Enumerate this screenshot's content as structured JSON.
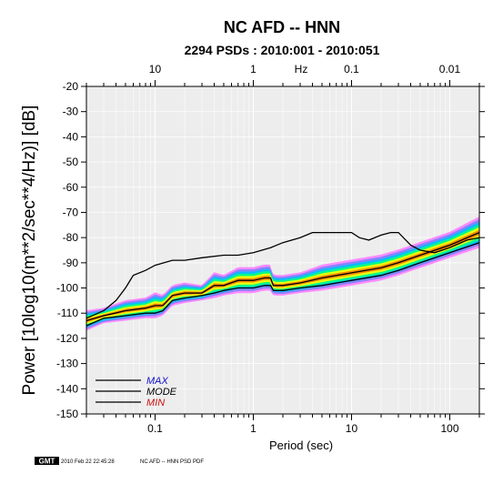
{
  "chart_data": {
    "type": "line",
    "title": "NC AFD -- HNN",
    "subtitle": "2294 PSDs : 2010:001 - 2010:051",
    "xlabel": "Period (sec)",
    "ylabel": "Power [10log10(m**2/sec**4/Hz)] [dB]",
    "top_axis_label": "Hz",
    "x_scale": "log",
    "xlim": [
      0.02,
      200
    ],
    "ylim": [
      -150,
      -20
    ],
    "x_ticks": [
      "0.1",
      "1",
      "10",
      "100"
    ],
    "top_ticks": [
      "10",
      "1",
      "0.1",
      "0.01"
    ],
    "y_ticks": [
      "-20",
      "-30",
      "-40",
      "-50",
      "-60",
      "-70",
      "-80",
      "-90",
      "-100",
      "-110",
      "-120",
      "-130",
      "-140",
      "-150"
    ],
    "grid": true,
    "legend_position": "bottom-left",
    "series": [
      {
        "name": "MAX",
        "color": "#000000",
        "label_color": "#1010cc",
        "x": [
          0.02,
          0.03,
          0.04,
          0.05,
          0.06,
          0.08,
          0.1,
          0.15,
          0.2,
          0.3,
          0.5,
          0.7,
          1,
          1.5,
          2,
          3,
          4,
          5,
          7,
          10,
          12,
          15,
          20,
          25,
          30,
          40,
          50,
          70,
          100,
          150,
          200
        ],
        "values": [
          -112,
          -109,
          -105,
          -100,
          -95,
          -93,
          -91,
          -89,
          -89,
          -88,
          -87,
          -87,
          -86,
          -84,
          -82,
          -80,
          -78,
          -78,
          -78,
          -78,
          -80,
          -81,
          -79,
          -78,
          -78,
          -83,
          -85,
          -86,
          -84,
          -81,
          -80
        ]
      },
      {
        "name": "MODE",
        "color": "#000000",
        "label_color": "#000000",
        "x": [
          0.02,
          0.03,
          0.05,
          0.08,
          0.1,
          0.12,
          0.15,
          0.2,
          0.3,
          0.4,
          0.5,
          0.7,
          1,
          1.3,
          1.5,
          1.6,
          2,
          3,
          5,
          10,
          20,
          30,
          50,
          100,
          200
        ],
        "values": [
          -113,
          -111,
          -109,
          -108,
          -107,
          -107,
          -103,
          -102,
          -102,
          -99,
          -99,
          -97,
          -97,
          -96,
          -96,
          -99,
          -99,
          -98,
          -96,
          -94,
          -92,
          -90,
          -87,
          -83,
          -78
        ]
      },
      {
        "name": "MIN",
        "color": "#000000",
        "label_color": "#cc1010",
        "x": [
          0.02,
          0.03,
          0.05,
          0.08,
          0.1,
          0.12,
          0.15,
          0.2,
          0.3,
          0.4,
          0.5,
          0.7,
          1,
          1.3,
          1.5,
          1.6,
          2,
          3,
          5,
          10,
          20,
          30,
          50,
          100,
          200
        ],
        "values": [
          -115,
          -112,
          -111,
          -110,
          -110,
          -109,
          -105,
          -104,
          -103,
          -102,
          -101,
          -100,
          -100,
          -99,
          -99,
          -101,
          -101,
          -100,
          -99,
          -97,
          -95,
          -93,
          -90,
          -86,
          -82
        ]
      }
    ],
    "pdf_band_colors": [
      "#ff80ff",
      "#8080ff",
      "#00c0ff",
      "#00ff80",
      "#ffff00",
      "#ff8000"
    ]
  },
  "footer": {
    "badge": "GMT",
    "timestamp": "2010 Feb 22 22:45:28",
    "caption": "NC AFD -- HNN PSD PDF"
  }
}
